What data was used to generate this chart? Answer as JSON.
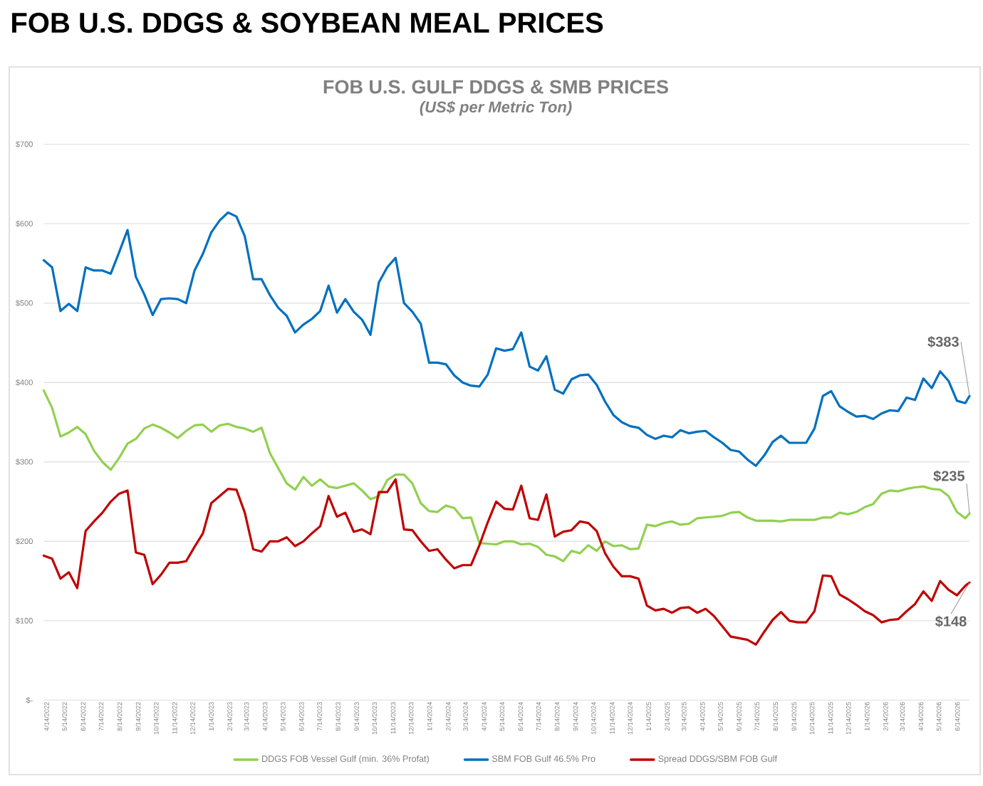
{
  "chart_data": {
    "type": "line",
    "title": "FOB U.S. DDGS & SOYBEAN MEAL PRICES",
    "subtitle": "FOB U.S. GULF DDGS & SMB PRICES",
    "annotations": [
      "(US$ per Metric Ton)",
      {
        "text": "$383",
        "x": "2026-07-09",
        "y": 383
      },
      {
        "text": "$235",
        "x": "2026-07-09",
        "y": 235
      },
      {
        "text": "$148",
        "x": "2026-07-09",
        "y": 148
      }
    ],
    "x": [
      "2022-04-14",
      "2022-04-28",
      "2022-05-12",
      "2022-05-26",
      "2022-06-09",
      "2022-06-23",
      "2022-07-07",
      "2022-07-21",
      "2022-08-04",
      "2022-08-18",
      "2022-09-01",
      "2022-09-15",
      "2022-09-29",
      "2022-10-13",
      "2022-10-27",
      "2022-11-10",
      "2022-11-24",
      "2022-12-08",
      "2022-12-22",
      "2023-01-05",
      "2023-01-19",
      "2023-02-02",
      "2023-02-16",
      "2023-03-02",
      "2023-03-16",
      "2023-03-30",
      "2023-04-13",
      "2023-04-27",
      "2023-05-11",
      "2023-05-25",
      "2023-06-08",
      "2023-06-22",
      "2023-07-06",
      "2023-07-20",
      "2023-08-03",
      "2023-08-17",
      "2023-08-31",
      "2023-09-14",
      "2023-09-28",
      "2023-10-12",
      "2023-10-26",
      "2023-11-09",
      "2023-11-23",
      "2023-12-07",
      "2023-12-21",
      "2024-01-04",
      "2024-01-18",
      "2024-02-01",
      "2024-02-15",
      "2024-02-29",
      "2024-03-14",
      "2024-03-28",
      "2024-04-11",
      "2024-04-25",
      "2024-05-09",
      "2024-05-23",
      "2024-06-06",
      "2024-06-20",
      "2024-07-04",
      "2024-07-18",
      "2024-08-01",
      "2024-08-15",
      "2024-08-29",
      "2024-09-12",
      "2024-09-26",
      "2024-10-10",
      "2024-10-24",
      "2024-11-07",
      "2024-11-21",
      "2024-12-05",
      "2024-12-19",
      "2025-01-02",
      "2025-01-16",
      "2025-01-30",
      "2025-02-13",
      "2025-02-27",
      "2025-03-13",
      "2025-03-27",
      "2025-04-10",
      "2025-04-24",
      "2025-05-08",
      "2025-05-22",
      "2025-06-05",
      "2025-06-19",
      "2025-07-03",
      "2025-07-17",
      "2025-07-31",
      "2025-08-14",
      "2025-08-28",
      "2025-09-11",
      "2025-09-25",
      "2025-10-09",
      "2025-10-23",
      "2025-11-06",
      "2025-11-20",
      "2025-12-04",
      "2025-12-18",
      "2026-01-01",
      "2026-01-15",
      "2026-01-29",
      "2026-02-12",
      "2026-02-26",
      "2026-03-12",
      "2026-03-26",
      "2026-04-09",
      "2026-04-23",
      "2026-05-07",
      "2026-05-21",
      "2026-06-04",
      "2026-06-18",
      "2026-07-02",
      "2026-07-09"
    ],
    "series": [
      {
        "name": "DDGS FOB Vessel Gulf (min. 36% Profat)",
        "color": "#92d050",
        "values": [
          390,
          368,
          332,
          337,
          344,
          335,
          314,
          300,
          290,
          305,
          323,
          329,
          342,
          347,
          343,
          337,
          330,
          339,
          346,
          347,
          338,
          346,
          348,
          344,
          342,
          338,
          343,
          311,
          292,
          273,
          265,
          281,
          270,
          278,
          269,
          267,
          270,
          273,
          264,
          253,
          257,
          277,
          284,
          284,
          273,
          248,
          238,
          237,
          245,
          242,
          229,
          230,
          198,
          197,
          196,
          200,
          200,
          196,
          197,
          193,
          183,
          181,
          175,
          188,
          185,
          195,
          188,
          200,
          194,
          195,
          190,
          191,
          221,
          219,
          223,
          225,
          221,
          222,
          229,
          230,
          231,
          232,
          236,
          237,
          230,
          226,
          226,
          226,
          225,
          227,
          227,
          227,
          227,
          230,
          230,
          236,
          234,
          237,
          243,
          247,
          260,
          264,
          263,
          266,
          268,
          269,
          266,
          265,
          257,
          237,
          229,
          235
        ]
      },
      {
        "name": "SBM FOB Gulf 46.5% Pro",
        "color": "#0070c0",
        "values": [
          554,
          545,
          490,
          499,
          490,
          545,
          541,
          541,
          537,
          564,
          592,
          533,
          511,
          485,
          505,
          506,
          505,
          500,
          541,
          562,
          589,
          604,
          614,
          609,
          584,
          530,
          530,
          510,
          494,
          484,
          463,
          473,
          480,
          490,
          522,
          488,
          505,
          489,
          479,
          460,
          526,
          545,
          557,
          500,
          489,
          474,
          425,
          425,
          423,
          409,
          400,
          396,
          395,
          410,
          443,
          440,
          442,
          463,
          420,
          415,
          433,
          391,
          386,
          404,
          409,
          410,
          397,
          376,
          359,
          350,
          345,
          343,
          334,
          329,
          333,
          331,
          340,
          336,
          338,
          339,
          331,
          324,
          315,
          313,
          303,
          295,
          308,
          325,
          333,
          324,
          324,
          324,
          342,
          383,
          389,
          370,
          363,
          357,
          358,
          354,
          361,
          365,
          364,
          381,
          378,
          405,
          393,
          414,
          402,
          377,
          374,
          383
        ]
      },
      {
        "name": "Spread DDGS/SBM FOB Gulf",
        "color": "#c00000",
        "values": [
          182,
          178,
          153,
          161,
          141,
          213,
          225,
          236,
          250,
          260,
          264,
          186,
          183,
          146,
          158,
          173,
          173,
          175,
          193,
          210,
          248,
          257,
          266,
          265,
          236,
          190,
          187,
          200,
          200,
          205,
          194,
          200,
          210,
          219,
          257,
          231,
          236,
          212,
          215,
          209,
          262,
          262,
          278,
          215,
          214,
          200,
          188,
          190,
          177,
          166,
          170,
          170,
          195,
          224,
          250,
          241,
          240,
          270,
          229,
          227,
          259,
          206,
          212,
          214,
          225,
          223,
          213,
          185,
          168,
          156,
          156,
          153,
          119,
          113,
          115,
          110,
          116,
          117,
          110,
          115,
          106,
          93,
          80,
          78,
          76,
          70,
          86,
          101,
          111,
          100,
          98,
          98,
          112,
          157,
          156,
          133,
          127,
          120,
          112,
          107,
          98,
          101,
          102,
          112,
          121,
          137,
          125,
          150,
          139,
          132,
          144,
          148
        ]
      }
    ],
    "xlim": [
      "2022-04-14",
      "2026-07-09"
    ],
    "xticks": [
      {
        "value": "2022-04-14",
        "label": "4/14/2022"
      },
      {
        "value": "2022-05-14",
        "label": "5/14/2022"
      },
      {
        "value": "2022-06-14",
        "label": "6/14/2022"
      },
      {
        "value": "2022-07-14",
        "label": "7/14/2022"
      },
      {
        "value": "2022-08-14",
        "label": "8/14/2022"
      },
      {
        "value": "2022-09-14",
        "label": "9/14/2022"
      },
      {
        "value": "2022-10-14",
        "label": "10/14/2022"
      },
      {
        "value": "2022-11-14",
        "label": "11/14/2022"
      },
      {
        "value": "2022-12-14",
        "label": "12/14/2022"
      },
      {
        "value": "2023-01-14",
        "label": "1/14/2023"
      },
      {
        "value": "2023-02-14",
        "label": "2/14/2023"
      },
      {
        "value": "2023-03-14",
        "label": "3/14/2023"
      },
      {
        "value": "2023-04-14",
        "label": "4/14/2023"
      },
      {
        "value": "2023-05-14",
        "label": "5/14/2023"
      },
      {
        "value": "2023-06-14",
        "label": "6/14/2023"
      },
      {
        "value": "2023-07-14",
        "label": "7/14/2023"
      },
      {
        "value": "2023-08-14",
        "label": "8/14/2023"
      },
      {
        "value": "2023-09-14",
        "label": "9/14/2023"
      },
      {
        "value": "2023-10-14",
        "label": "10/14/2023"
      },
      {
        "value": "2023-11-14",
        "label": "11/14/2023"
      },
      {
        "value": "2023-12-14",
        "label": "12/14/2023"
      },
      {
        "value": "2024-01-14",
        "label": "1/14/2024"
      },
      {
        "value": "2024-02-14",
        "label": "2/14/2024"
      },
      {
        "value": "2024-03-14",
        "label": "3/14/2024"
      },
      {
        "value": "2024-04-14",
        "label": "4/14/2024"
      },
      {
        "value": "2024-05-14",
        "label": "5/14/2024"
      },
      {
        "value": "2024-06-14",
        "label": "6/14/2024"
      },
      {
        "value": "2024-07-14",
        "label": "7/14/2024"
      },
      {
        "value": "2024-08-14",
        "label": "8/14/2024"
      },
      {
        "value": "2024-09-14",
        "label": "9/14/2024"
      },
      {
        "value": "2024-10-14",
        "label": "10/14/2024"
      },
      {
        "value": "2024-11-14",
        "label": "11/14/2024"
      },
      {
        "value": "2024-12-14",
        "label": "12/14/2024"
      },
      {
        "value": "2025-01-14",
        "label": "1/14/2025"
      },
      {
        "value": "2025-02-14",
        "label": "2/14/2025"
      },
      {
        "value": "2025-03-14",
        "label": "3/14/2025"
      },
      {
        "value": "2025-04-14",
        "label": "4/14/2025"
      },
      {
        "value": "2025-05-14",
        "label": "5/14/2025"
      },
      {
        "value": "2025-06-14",
        "label": "6/14/2025"
      },
      {
        "value": "2025-07-14",
        "label": "7/14/2025"
      },
      {
        "value": "2025-08-14",
        "label": "8/14/2025"
      },
      {
        "value": "2025-09-14",
        "label": "9/14/2025"
      },
      {
        "value": "2025-10-14",
        "label": "10/14/2025"
      },
      {
        "value": "2025-11-14",
        "label": "11/14/2025"
      },
      {
        "value": "2025-12-14",
        "label": "12/14/2025"
      },
      {
        "value": "2026-01-14",
        "label": "1/14/2026"
      },
      {
        "value": "2026-02-14",
        "label": "2/14/2026"
      },
      {
        "value": "2026-03-14",
        "label": "3/14/2026"
      },
      {
        "value": "2026-04-14",
        "label": "4/14/2026"
      },
      {
        "value": "2026-05-14",
        "label": "5/14/2026"
      },
      {
        "value": "2026-06-14",
        "label": "6/14/2026"
      }
    ],
    "ylim": [
      0,
      700
    ],
    "yticks": [
      {
        "value": 0,
        "label": "$-"
      },
      {
        "value": 100,
        "label": "$100"
      },
      {
        "value": 200,
        "label": "$200"
      },
      {
        "value": 300,
        "label": "$300"
      },
      {
        "value": 400,
        "label": "$400"
      },
      {
        "value": 500,
        "label": "$500"
      },
      {
        "value": 600,
        "label": "$600"
      },
      {
        "value": 700,
        "label": "$700"
      }
    ],
    "grid": "y",
    "legend": "bottom",
    "line_style": "solid"
  }
}
